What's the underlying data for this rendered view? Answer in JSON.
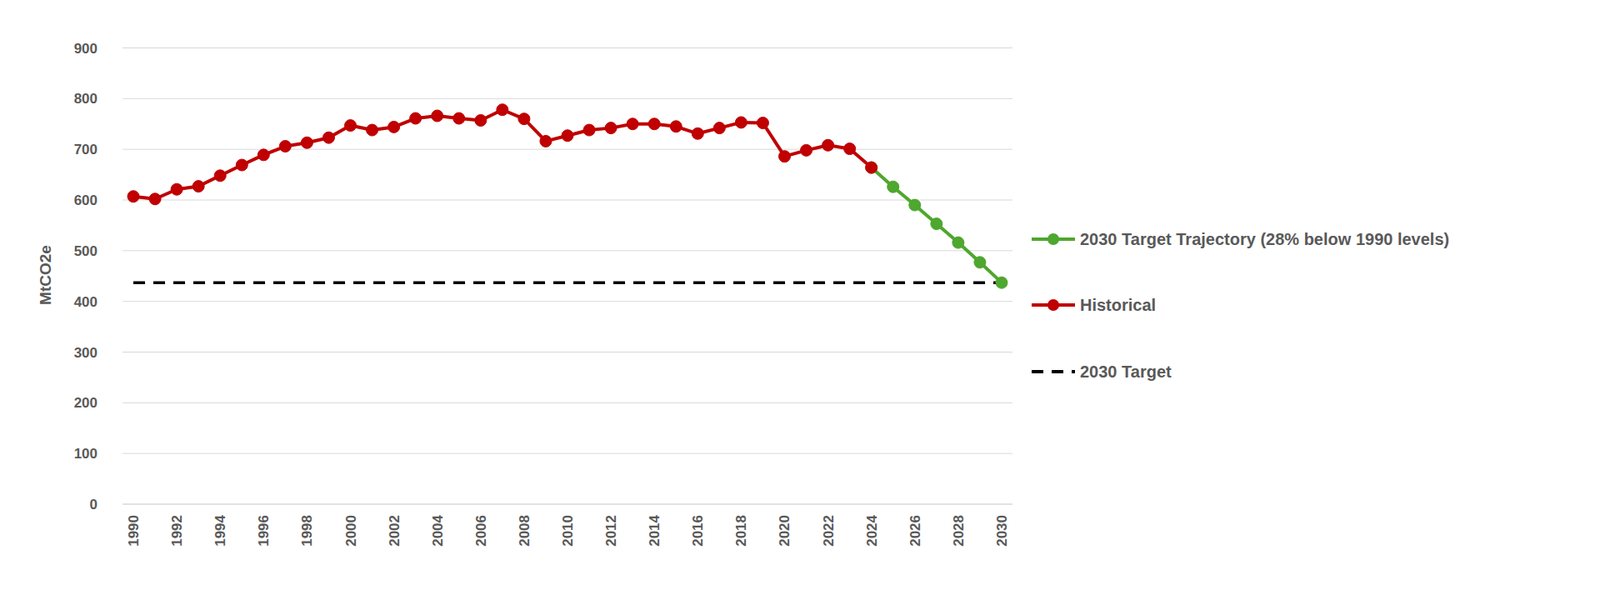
{
  "chart_data": {
    "type": "line",
    "y_label": "MtCO2e",
    "categories": [
      "1990",
      null,
      "1992",
      null,
      "1994",
      null,
      "1996",
      null,
      "1998",
      null,
      "2000",
      null,
      "2002",
      null,
      "2004",
      null,
      "2006",
      null,
      "2008",
      null,
      "2010",
      null,
      "2012",
      null,
      "2014",
      null,
      "2016",
      null,
      "2018",
      null,
      "2020",
      null,
      "2022",
      null,
      "2024",
      null,
      "2026",
      null,
      "2028",
      null,
      "2030"
    ],
    "series": [
      {
        "name": "2030 Target Trajectory (28% below 1990 levels)",
        "color": "#4ea72e",
        "marker": "circle",
        "line_style": "solid",
        "values": [
          null,
          null,
          null,
          null,
          null,
          null,
          null,
          null,
          null,
          null,
          null,
          null,
          null,
          null,
          null,
          null,
          null,
          null,
          null,
          null,
          null,
          null,
          null,
          null,
          null,
          null,
          null,
          null,
          null,
          null,
          null,
          null,
          null,
          null,
          664,
          626,
          590,
          553,
          516,
          477,
          437
        ]
      },
      {
        "name": "Historical",
        "color": "#c00000",
        "marker": "circle",
        "line_style": "solid",
        "values": [
          607,
          602,
          621,
          627,
          648,
          669,
          689,
          706,
          713,
          723,
          747,
          738,
          744,
          761,
          766,
          761,
          757,
          778,
          760,
          716,
          727,
          738,
          742,
          750,
          750,
          745,
          731,
          742,
          753,
          752,
          686,
          698,
          708,
          701,
          664,
          null,
          null,
          null,
          null,
          null,
          null
        ]
      },
      {
        "name": "2030 Target",
        "color": "#000000",
        "marker": "none",
        "line_style": "dashed",
        "values": [
          437,
          437,
          437,
          437,
          437,
          437,
          437,
          437,
          437,
          437,
          437,
          437,
          437,
          437,
          437,
          437,
          437,
          437,
          437,
          437,
          437,
          437,
          437,
          437,
          437,
          437,
          437,
          437,
          437,
          437,
          437,
          437,
          437,
          437,
          437,
          437,
          437,
          437,
          437,
          437,
          437
        ]
      }
    ],
    "ylim": [
      0,
      900
    ],
    "yticks": [
      0,
      100,
      200,
      300,
      400,
      500,
      600,
      700,
      800,
      900
    ],
    "grid": true,
    "legend": "right"
  }
}
